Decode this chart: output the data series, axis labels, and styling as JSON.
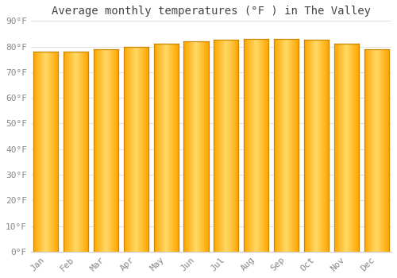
{
  "title": "Average monthly temperatures (°F ) in The Valley",
  "months": [
    "Jan",
    "Feb",
    "Mar",
    "Apr",
    "May",
    "Jun",
    "Jul",
    "Aug",
    "Sep",
    "Oct",
    "Nov",
    "Dec"
  ],
  "values": [
    78,
    78,
    79,
    80,
    81,
    82,
    82.5,
    83,
    83,
    82.5,
    81,
    79
  ],
  "bar_color_center": "#FFD966",
  "bar_color_edge": "#FFA500",
  "bar_outline_color": "#CC8800",
  "background_color": "#FFFFFF",
  "grid_color": "#E0E0E0",
  "ylim": [
    0,
    90
  ],
  "yticks": [
    0,
    10,
    20,
    30,
    40,
    50,
    60,
    70,
    80,
    90
  ],
  "ytick_labels": [
    "0°F",
    "10°F",
    "20°F",
    "30°F",
    "40°F",
    "50°F",
    "60°F",
    "70°F",
    "80°F",
    "90°F"
  ],
  "title_fontsize": 10,
  "tick_fontsize": 8,
  "title_color": "#444444",
  "tick_color": "#888888",
  "font_family": "monospace",
  "bar_width": 0.82
}
